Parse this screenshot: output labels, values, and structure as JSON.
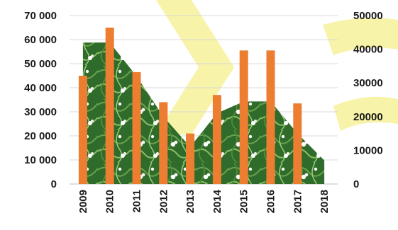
{
  "chart_data": {
    "type": "bar",
    "categories": [
      "2009",
      "2010",
      "2011",
      "2012",
      "2013",
      "2014",
      "2015",
      "2016",
      "2017",
      "2018"
    ],
    "series": [
      {
        "type": "bar",
        "axis": "left",
        "color": "#ed7d31",
        "values": [
          45000,
          65000,
          46500,
          34000,
          21000,
          37000,
          55500,
          55500,
          33500,
          null
        ]
      },
      {
        "type": "area",
        "axis": "right",
        "fill": "image-like (green foliage with white flowers)",
        "values": [
          42000,
          42000,
          32000,
          20000,
          11000,
          21000,
          24500,
          24500,
          15000,
          7000
        ]
      }
    ],
    "y_left": {
      "ticks": [
        "0",
        "10 000",
        "20 000",
        "30 000",
        "40 000",
        "50 000",
        "60 000",
        "70 000"
      ],
      "lim": [
        0,
        70000
      ]
    },
    "y_right": {
      "ticks": [
        "0",
        "10000",
        "20000",
        "30000",
        "40000",
        "50000"
      ],
      "lim": [
        0,
        50000
      ]
    },
    "grid": true,
    "background_color": "#ffffff",
    "watermark_color": "#f7f3a8"
  }
}
